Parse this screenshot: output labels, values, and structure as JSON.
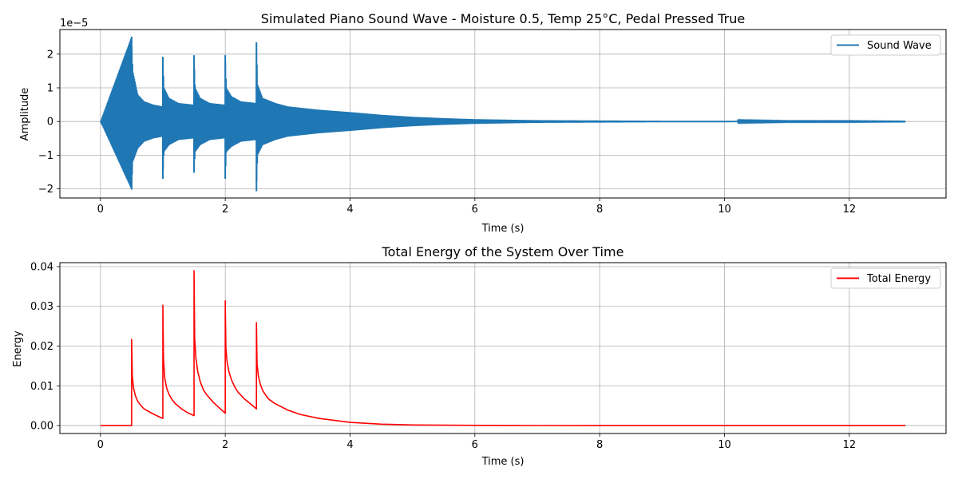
{
  "chart_data": [
    {
      "type": "line",
      "title": "Simulated Piano Sound Wave - Moisture 0.5, Temp 25°C, Pedal Pressed True",
      "xlabel": "Time (s)",
      "ylabel": "Amplitude",
      "y_scale_label": "1e−5",
      "xlim": [
        -0.65,
        13.55
      ],
      "ylim": [
        -2.27,
        2.73
      ],
      "x_ticks": [
        0,
        2,
        4,
        6,
        8,
        10,
        12
      ],
      "x_tick_labels": [
        "0",
        "2",
        "4",
        "6",
        "8",
        "10",
        "12"
      ],
      "y_ticks": [
        -2,
        -1,
        0,
        1,
        2
      ],
      "y_tick_labels": [
        "−2",
        "−1",
        "0",
        "1",
        "2"
      ],
      "grid": true,
      "legend": "top-right",
      "color": "#1f77b4",
      "series": [
        {
          "name": "Sound Wave",
          "kind": "oscillating-envelope",
          "x": [
            0,
            0.5,
            0.52,
            0.6,
            0.7,
            0.85,
            1.0,
            1.0,
            1.02,
            1.1,
            1.25,
            1.5,
            1.5,
            1.52,
            1.6,
            1.75,
            2.0,
            2.0,
            2.02,
            2.1,
            2.25,
            2.5,
            2.5,
            2.52,
            2.6,
            2.8,
            3.0,
            3.5,
            4.0,
            4.5,
            5.0,
            5.5,
            6.0,
            7.0,
            8.0,
            9.0,
            10.0,
            11.0,
            12.0,
            12.9
          ],
          "upper": [
            0,
            2.52,
            1.5,
            0.8,
            0.6,
            0.5,
            0.45,
            1.92,
            1.0,
            0.7,
            0.55,
            0.5,
            1.97,
            1.0,
            0.7,
            0.55,
            0.5,
            1.97,
            1.0,
            0.75,
            0.6,
            0.55,
            2.35,
            1.1,
            0.7,
            0.55,
            0.45,
            0.35,
            0.28,
            0.2,
            0.14,
            0.1,
            0.07,
            0.04,
            0.03,
            0.02,
            0.02,
            0.01,
            0.01,
            0.005
          ],
          "lower": [
            0,
            -2.02,
            -1.2,
            -0.8,
            -0.6,
            -0.5,
            -0.45,
            -1.7,
            -0.9,
            -0.7,
            -0.55,
            -0.5,
            -1.52,
            -0.9,
            -0.7,
            -0.55,
            -0.5,
            -1.7,
            -0.9,
            -0.75,
            -0.6,
            -0.55,
            -2.07,
            -1.0,
            -0.7,
            -0.55,
            -0.45,
            -0.35,
            -0.28,
            -0.2,
            -0.14,
            -0.1,
            -0.07,
            -0.04,
            -0.03,
            -0.02,
            -0.02,
            -0.01,
            -0.01,
            -0.005
          ]
        }
      ]
    },
    {
      "type": "line",
      "title": "Total Energy of the System Over Time",
      "xlabel": "Time (s)",
      "ylabel": "Energy",
      "xlim": [
        -0.65,
        13.55
      ],
      "ylim": [
        -0.002,
        0.041
      ],
      "x_ticks": [
        0,
        2,
        4,
        6,
        8,
        10,
        12
      ],
      "x_tick_labels": [
        "0",
        "2",
        "4",
        "6",
        "8",
        "10",
        "12"
      ],
      "y_ticks": [
        0.0,
        0.01,
        0.02,
        0.03,
        0.04
      ],
      "y_tick_labels": [
        "0.00",
        "0.01",
        "0.02",
        "0.03",
        "0.04"
      ],
      "grid": true,
      "legend": "top-right",
      "color": "#ff0000",
      "series": [
        {
          "name": "Total Energy",
          "x": [
            0,
            0.5,
            0.5,
            0.51,
            0.53,
            0.56,
            0.6,
            0.65,
            0.7,
            0.8,
            0.9,
            1.0,
            1.0,
            1.01,
            1.03,
            1.06,
            1.1,
            1.15,
            1.2,
            1.3,
            1.4,
            1.5,
            1.5,
            1.51,
            1.53,
            1.56,
            1.6,
            1.65,
            1.7,
            1.8,
            1.9,
            2.0,
            2.0,
            2.01,
            2.03,
            2.06,
            2.1,
            2.15,
            2.2,
            2.3,
            2.4,
            2.5,
            2.5,
            2.51,
            2.53,
            2.56,
            2.6,
            2.65,
            2.7,
            2.8,
            3.0,
            3.2,
            3.5,
            4.0,
            4.5,
            5.0,
            6.0,
            7.0,
            8.0,
            10.0,
            12.9
          ],
          "y": [
            0,
            0,
            0.0217,
            0.0125,
            0.0095,
            0.0075,
            0.006,
            0.005,
            0.0042,
            0.0033,
            0.0025,
            0.0018,
            0.0303,
            0.017,
            0.012,
            0.0095,
            0.0078,
            0.0065,
            0.0055,
            0.0042,
            0.0032,
            0.0025,
            0.039,
            0.022,
            0.017,
            0.0135,
            0.011,
            0.009,
            0.0078,
            0.006,
            0.0045,
            0.0031,
            0.0314,
            0.0195,
            0.016,
            0.0135,
            0.0115,
            0.0098,
            0.0085,
            0.0068,
            0.0055,
            0.0042,
            0.0259,
            0.0155,
            0.0125,
            0.0105,
            0.0088,
            0.0076,
            0.0066,
            0.0055,
            0.0039,
            0.0028,
            0.0018,
            0.0008,
            0.00035,
            0.00015,
            4e-05,
            1e-05,
            0,
            0,
            0
          ]
        }
      ]
    }
  ]
}
